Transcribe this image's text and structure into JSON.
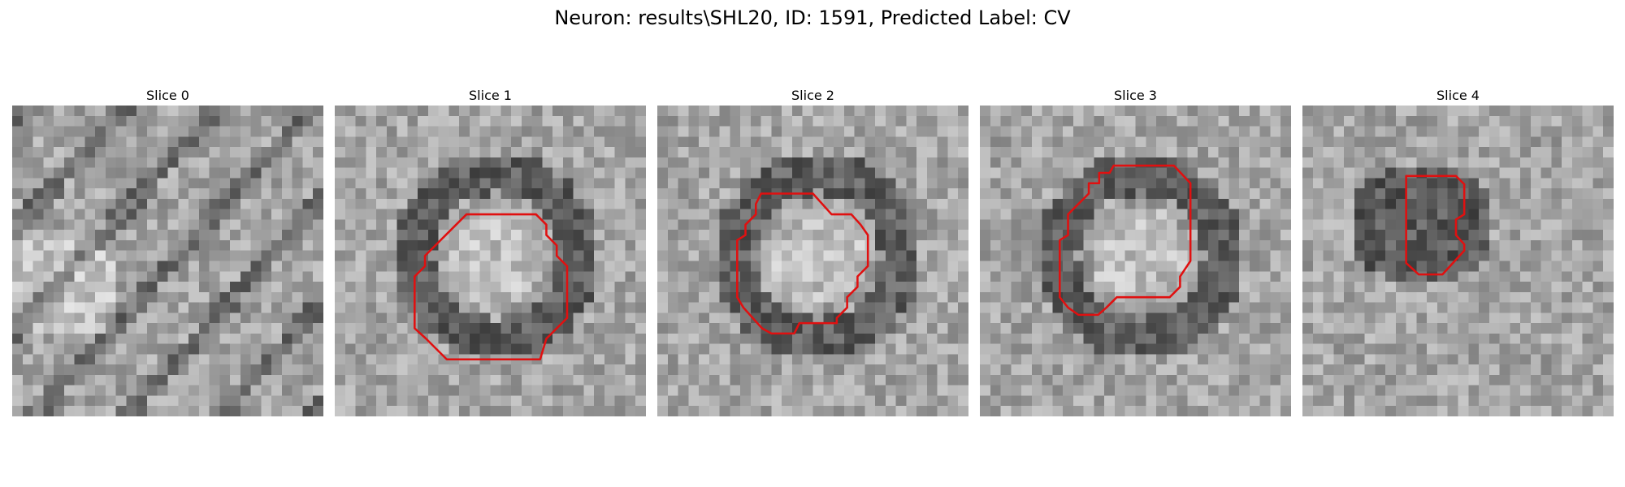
{
  "figure": {
    "title": "Neuron: results\\SHL20, ID: 1591, Predicted Label: CV"
  },
  "contour_color": "#e01010",
  "grid_size": 30,
  "panels": [
    {
      "title": "Slice 0",
      "pattern": "diagonal-streaks",
      "contour": []
    },
    {
      "title": "Slice 1",
      "pattern": "ring",
      "contour": [
        [
          13.2,
          10.5
        ],
        [
          19.4,
          10.5
        ],
        [
          20.4,
          11.5
        ],
        [
          20.4,
          12.5
        ],
        [
          21.4,
          13.5
        ],
        [
          21.4,
          14.5
        ],
        [
          22.4,
          15.5
        ],
        [
          22.4,
          20.5
        ],
        [
          21.4,
          21.5
        ],
        [
          20.4,
          22.5
        ],
        [
          19.8,
          24.5
        ],
        [
          10.8,
          24.5
        ],
        [
          9.8,
          23.5
        ],
        [
          8.8,
          22.5
        ],
        [
          7.7,
          21.5
        ],
        [
          7.7,
          16.5
        ],
        [
          8.7,
          15.5
        ],
        [
          8.7,
          14.5
        ],
        [
          9.7,
          13.5
        ],
        [
          10.7,
          12.5
        ],
        [
          11.7,
          11.5
        ],
        [
          12.7,
          10.5
        ]
      ]
    },
    {
      "title": "Slice 2",
      "pattern": "ring",
      "contour": [
        [
          10.0,
          8.5
        ],
        [
          15.0,
          8.5
        ],
        [
          16.8,
          10.5
        ],
        [
          18.7,
          10.5
        ],
        [
          19.6,
          11.5
        ],
        [
          20.3,
          12.5
        ],
        [
          20.3,
          15.5
        ],
        [
          19.3,
          16.5
        ],
        [
          19.3,
          17.5
        ],
        [
          18.3,
          18.5
        ],
        [
          18.3,
          19.5
        ],
        [
          17.3,
          20.5
        ],
        [
          17.3,
          21.0
        ],
        [
          13.7,
          21.0
        ],
        [
          13.2,
          22.0
        ],
        [
          11.0,
          22.0
        ],
        [
          10.1,
          21.5
        ],
        [
          9.2,
          20.5
        ],
        [
          8.3,
          19.5
        ],
        [
          7.7,
          18.5
        ],
        [
          7.7,
          13.0
        ],
        [
          8.5,
          12.5
        ],
        [
          8.5,
          11.5
        ],
        [
          9.5,
          10.5
        ],
        [
          9.5,
          9.5
        ],
        [
          10.0,
          8.5
        ]
      ]
    },
    {
      "title": "Slice 3",
      "pattern": "ring",
      "contour": [
        [
          12.9,
          5.8
        ],
        [
          18.7,
          5.8
        ],
        [
          20.3,
          7.5
        ],
        [
          20.3,
          15.0
        ],
        [
          19.3,
          16.5
        ],
        [
          19.3,
          17.5
        ],
        [
          18.3,
          18.5
        ],
        [
          13.2,
          18.5
        ],
        [
          12.2,
          19.5
        ],
        [
          11.4,
          20.2
        ],
        [
          9.5,
          20.2
        ],
        [
          8.5,
          19.5
        ],
        [
          7.7,
          18.5
        ],
        [
          7.7,
          13.0
        ],
        [
          8.5,
          12.5
        ],
        [
          8.5,
          10.5
        ],
        [
          9.5,
          9.5
        ],
        [
          10.5,
          8.5
        ],
        [
          10.5,
          7.5
        ],
        [
          11.5,
          7.5
        ],
        [
          11.5,
          6.5
        ],
        [
          12.5,
          6.5
        ]
      ]
    },
    {
      "title": "Slice 4",
      "pattern": "blob",
      "contour": [
        [
          10.0,
          6.8
        ],
        [
          14.8,
          6.8
        ],
        [
          15.6,
          7.6
        ],
        [
          15.6,
          10.5
        ],
        [
          14.8,
          11.0
        ],
        [
          14.8,
          12.5
        ],
        [
          15.6,
          13.4
        ],
        [
          15.6,
          14.0
        ],
        [
          13.5,
          16.3
        ],
        [
          11.2,
          16.3
        ],
        [
          10.0,
          15.2
        ],
        [
          10.0,
          6.8
        ]
      ]
    }
  ]
}
